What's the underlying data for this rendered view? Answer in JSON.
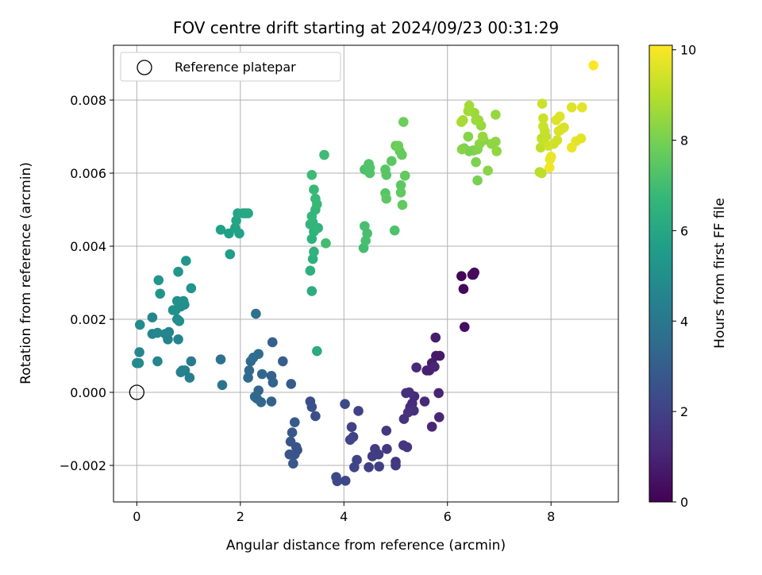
{
  "chart_data": {
    "type": "scatter",
    "title": "FOV centre drift starting at 2024/09/23 00:31:29",
    "xlabel": "Angular distance from reference (arcmin)",
    "ylabel": "Rotation from reference (arcmin)",
    "xlim": [
      -0.45,
      9.3
    ],
    "ylim": [
      -0.003,
      0.0095
    ],
    "xticks": [
      0,
      2,
      4,
      6,
      8
    ],
    "xtick_labels": [
      "0",
      "2",
      "4",
      "6",
      "8"
    ],
    "yticks": [
      -0.002,
      0.0,
      0.002,
      0.004,
      0.006,
      0.008
    ],
    "ytick_labels": [
      "−0.002",
      "0.000",
      "0.002",
      "0.004",
      "0.006",
      "0.008"
    ],
    "grid": true,
    "legend": {
      "placement": "top-left",
      "entries": [
        "Reference platepar"
      ]
    },
    "colorbar": {
      "label": "Hours from first FF file",
      "range": [
        0,
        10.1
      ],
      "ticks": [
        0,
        2,
        4,
        6,
        8,
        10
      ],
      "tick_labels": [
        "0",
        "2",
        "4",
        "6",
        "8",
        "10"
      ],
      "colormap": [
        "#440154",
        "#482878",
        "#3e4989",
        "#31688e",
        "#26828e",
        "#1f9e89",
        "#35b779",
        "#6ece58",
        "#b5de2b",
        "#fde725"
      ]
    },
    "reference": {
      "x": 0.0,
      "y": 0.0,
      "marker": "open-circle",
      "color": "#000000"
    },
    "points": [
      [
        6.27,
        0.00318,
        0.1
      ],
      [
        6.31,
        0.00283,
        0.2
      ],
      [
        6.48,
        0.00322,
        0.2
      ],
      [
        6.52,
        0.00328,
        0.3
      ],
      [
        6.5,
        0.00322,
        0.3
      ],
      [
        6.33,
        0.00179,
        0.4
      ],
      [
        5.78,
        0.001,
        0.7
      ],
      [
        5.85,
        0.001,
        0.7
      ],
      [
        5.77,
        0.0015,
        0.8
      ],
      [
        5.7,
        0.0008,
        0.8
      ],
      [
        5.65,
        0.0006,
        0.9
      ],
      [
        5.6,
        0.0006,
        0.9
      ],
      [
        5.75,
        0.0007,
        1.0
      ],
      [
        5.83,
        -2e-05,
        1.0
      ],
      [
        5.84,
        -0.00068,
        1.1
      ],
      [
        5.7,
        -0.00094,
        1.1
      ],
      [
        5.56,
        -0.00025,
        1.2
      ],
      [
        5.4,
        0.00068,
        1.2
      ],
      [
        5.36,
        -0.00011,
        1.3
      ],
      [
        5.32,
        -0.0003,
        1.3
      ],
      [
        5.28,
        -0.0004,
        1.3
      ],
      [
        5.35,
        -0.0005,
        1.4
      ],
      [
        5.26,
        0.0,
        1.4
      ],
      [
        5.2,
        -2e-05,
        1.4
      ],
      [
        5.24,
        -0.00055,
        1.5
      ],
      [
        5.16,
        -0.00073,
        1.5
      ],
      [
        5.22,
        -0.0015,
        1.6
      ],
      [
        5.15,
        -0.00145,
        1.6
      ],
      [
        5.0,
        -0.0019,
        1.6
      ],
      [
        5.0,
        -0.002,
        1.7
      ],
      [
        4.82,
        -0.00105,
        1.7
      ],
      [
        4.83,
        -0.00155,
        1.7
      ],
      [
        4.67,
        -0.0017,
        1.8
      ],
      [
        4.6,
        -0.00155,
        1.8
      ],
      [
        4.55,
        -0.00175,
        1.8
      ],
      [
        4.48,
        -0.00205,
        1.9
      ],
      [
        4.68,
        -0.00203,
        1.9
      ],
      [
        4.28,
        -0.00051,
        2.0
      ],
      [
        4.15,
        -0.00095,
        2.0
      ],
      [
        4.18,
        -0.00122,
        2.0
      ],
      [
        4.12,
        -0.0013,
        2.1
      ],
      [
        4.25,
        -0.00185,
        2.1
      ],
      [
        4.2,
        -0.00205,
        2.1
      ],
      [
        4.03,
        -0.00242,
        2.2
      ],
      [
        3.87,
        -0.00243,
        2.2
      ],
      [
        3.85,
        -0.00232,
        2.2
      ],
      [
        4.02,
        -0.00032,
        2.3
      ],
      [
        3.45,
        -0.00065,
        2.4
      ],
      [
        3.35,
        -0.00025,
        2.4
      ],
      [
        3.38,
        -0.0004,
        2.5
      ],
      [
        3.1,
        -0.00158,
        2.5
      ],
      [
        3.08,
        -0.0015,
        2.6
      ],
      [
        3.05,
        -0.0017,
        2.6
      ],
      [
        2.95,
        -0.0017,
        2.7
      ],
      [
        2.97,
        -0.00135,
        2.7
      ],
      [
        3.0,
        -0.0011,
        2.8
      ],
      [
        3.02,
        -0.00195,
        2.8
      ],
      [
        3.05,
        -0.00082,
        2.9
      ],
      [
        2.98,
        0.00023,
        2.9
      ],
      [
        2.82,
        0.00085,
        3.0
      ],
      [
        2.62,
        0.00137,
        3.1
      ],
      [
        2.6,
        0.00045,
        3.1
      ],
      [
        2.63,
        0.00027,
        3.2
      ],
      [
        2.6,
        -0.00025,
        3.2
      ],
      [
        2.42,
        0.0005,
        3.3
      ],
      [
        2.35,
        5e-05,
        3.3
      ],
      [
        2.32,
        -0.00017,
        3.3
      ],
      [
        2.4,
        -0.00027,
        3.4
      ],
      [
        2.28,
        -0.00012,
        3.4
      ],
      [
        2.15,
        0.0004,
        3.5
      ],
      [
        2.17,
        0.0006,
        3.5
      ],
      [
        2.2,
        0.00085,
        3.5
      ],
      [
        2.25,
        0.00095,
        3.6
      ],
      [
        2.35,
        0.00105,
        3.6
      ],
      [
        2.3,
        0.00215,
        3.7
      ],
      [
        1.62,
        0.0009,
        3.8
      ],
      [
        1.65,
        0.0002,
        3.9
      ],
      [
        1.05,
        0.00085,
        4.2
      ],
      [
        1.02,
        0.0004,
        4.3
      ],
      [
        0.93,
        0.0006,
        4.3
      ],
      [
        0.88,
        0.0006,
        4.4
      ],
      [
        0.85,
        0.00055,
        4.4
      ],
      [
        0.8,
        0.00145,
        4.5
      ],
      [
        0.6,
        0.00145,
        4.5
      ],
      [
        0.62,
        0.00165,
        4.5
      ],
      [
        0.55,
        0.0016,
        4.6
      ],
      [
        0.4,
        0.00085,
        4.6
      ],
      [
        0.3,
        0.0016,
        4.6
      ],
      [
        0.4,
        0.00163,
        4.7
      ],
      [
        0.3,
        0.00205,
        4.7
      ],
      [
        0.05,
        0.0011,
        4.7
      ],
      [
        0.04,
        0.0008,
        4.8
      ],
      [
        0.0,
        0.0008,
        4.8
      ],
      [
        0.06,
        0.00185,
        4.9
      ],
      [
        0.78,
        0.002,
        4.9
      ],
      [
        0.82,
        0.00195,
        5.0
      ],
      [
        0.75,
        0.00225,
        5.0
      ],
      [
        0.85,
        0.00235,
        5.0
      ],
      [
        0.92,
        0.0024,
        5.0
      ],
      [
        0.78,
        0.0025,
        5.1
      ],
      [
        0.9,
        0.0025,
        5.1
      ],
      [
        0.7,
        0.00225,
        5.1
      ],
      [
        0.45,
        0.0027,
        5.2
      ],
      [
        1.05,
        0.00285,
        5.2
      ],
      [
        0.8,
        0.0033,
        5.3
      ],
      [
        0.95,
        0.0036,
        5.3
      ],
      [
        0.42,
        0.00307,
        5.3
      ],
      [
        1.8,
        0.00378,
        5.6
      ],
      [
        1.62,
        0.00445,
        5.7
      ],
      [
        1.78,
        0.00435,
        5.7
      ],
      [
        1.9,
        0.0045,
        5.8
      ],
      [
        1.98,
        0.00435,
        5.8
      ],
      [
        1.92,
        0.0047,
        5.9
      ],
      [
        1.95,
        0.0049,
        5.9
      ],
      [
        2.05,
        0.0049,
        6.0
      ],
      [
        2.1,
        0.0049,
        6.0
      ],
      [
        2.15,
        0.0049,
        6.0
      ],
      [
        3.48,
        0.00113,
        6.2
      ],
      [
        3.38,
        0.00277,
        6.3
      ],
      [
        3.35,
        0.00333,
        6.4
      ],
      [
        3.4,
        0.00365,
        6.4
      ],
      [
        3.42,
        0.00385,
        6.5
      ],
      [
        3.38,
        0.0042,
        6.5
      ],
      [
        3.42,
        0.0044,
        6.5
      ],
      [
        3.5,
        0.0045,
        6.6
      ],
      [
        3.4,
        0.00465,
        6.6
      ],
      [
        3.35,
        0.0046,
        6.6
      ],
      [
        3.38,
        0.00482,
        6.7
      ],
      [
        3.45,
        0.005,
        6.7
      ],
      [
        3.48,
        0.00515,
        6.8
      ],
      [
        3.45,
        0.0053,
        6.8
      ],
      [
        3.42,
        0.00555,
        6.8
      ],
      [
        3.38,
        0.00595,
        6.9
      ],
      [
        3.62,
        0.0065,
        6.9
      ],
      [
        3.65,
        0.00408,
        7.0
      ],
      [
        4.38,
        0.00395,
        7.0
      ],
      [
        4.42,
        0.00415,
        7.1
      ],
      [
        4.45,
        0.00435,
        7.1
      ],
      [
        4.4,
        0.00455,
        7.1
      ],
      [
        4.98,
        0.00443,
        7.2
      ],
      [
        4.4,
        0.0061,
        7.2
      ],
      [
        4.5,
        0.00615,
        7.3
      ],
      [
        4.48,
        0.00625,
        7.3
      ],
      [
        4.5,
        0.006,
        7.3
      ],
      [
        4.8,
        0.0061,
        7.4
      ],
      [
        4.82,
        0.00595,
        7.4
      ],
      [
        4.8,
        0.00545,
        7.4
      ],
      [
        4.82,
        0.0053,
        7.5
      ],
      [
        4.92,
        0.00633,
        7.5
      ],
      [
        5.1,
        0.00567,
        7.5
      ],
      [
        5.1,
        0.00547,
        7.6
      ],
      [
        5.13,
        0.00513,
        7.6
      ],
      [
        5.18,
        0.00593,
        7.6
      ],
      [
        5.08,
        0.0066,
        7.7
      ],
      [
        5.12,
        0.0065,
        7.7
      ],
      [
        5.0,
        0.00675,
        7.7
      ],
      [
        5.05,
        0.00675,
        7.8
      ],
      [
        5.15,
        0.0074,
        7.8
      ],
      [
        6.58,
        0.0058,
        8.0
      ],
      [
        6.5,
        0.00662,
        8.0
      ],
      [
        6.55,
        0.0063,
        8.1
      ],
      [
        6.42,
        0.0066,
        8.1
      ],
      [
        6.32,
        0.00668,
        8.1
      ],
      [
        6.28,
        0.00665,
        8.2
      ],
      [
        6.4,
        0.007,
        8.2
      ],
      [
        6.58,
        0.00665,
        8.2
      ],
      [
        6.62,
        0.0068,
        8.3
      ],
      [
        6.7,
        0.0069,
        8.3
      ],
      [
        6.78,
        0.00607,
        8.3
      ],
      [
        6.85,
        0.0068,
        8.4
      ],
      [
        6.93,
        0.00686,
        8.4
      ],
      [
        6.95,
        0.0066,
        8.4
      ],
      [
        6.93,
        0.0076,
        8.5
      ],
      [
        6.68,
        0.007,
        8.5
      ],
      [
        6.65,
        0.0073,
        8.5
      ],
      [
        6.55,
        0.00745,
        8.6
      ],
      [
        6.6,
        0.00745,
        8.6
      ],
      [
        6.52,
        0.00765,
        8.6
      ],
      [
        6.4,
        0.0077,
        8.7
      ],
      [
        6.42,
        0.00785,
        8.7
      ],
      [
        6.3,
        0.00745,
        8.7
      ],
      [
        6.27,
        0.0074,
        8.8
      ],
      [
        7.78,
        0.00603,
        9.0
      ],
      [
        7.82,
        0.006,
        9.1
      ],
      [
        7.8,
        0.0067,
        9.1
      ],
      [
        7.82,
        0.00695,
        9.1
      ],
      [
        7.85,
        0.0069,
        9.2
      ],
      [
        7.9,
        0.007,
        9.2
      ],
      [
        7.88,
        0.00715,
        9.2
      ],
      [
        7.85,
        0.00728,
        9.3
      ],
      [
        7.85,
        0.0075,
        9.3
      ],
      [
        7.83,
        0.0079,
        9.3
      ],
      [
        7.95,
        0.00675,
        9.4
      ],
      [
        8.05,
        0.0068,
        9.4
      ],
      [
        8.12,
        0.0069,
        9.4
      ],
      [
        8.15,
        0.00715,
        9.5
      ],
      [
        8.2,
        0.0072,
        9.5
      ],
      [
        8.25,
        0.00725,
        9.5
      ],
      [
        8.1,
        0.00745,
        9.6
      ],
      [
        8.17,
        0.00755,
        9.6
      ],
      [
        8.4,
        0.0078,
        9.6
      ],
      [
        8.6,
        0.0078,
        9.7
      ],
      [
        8.58,
        0.00695,
        9.7
      ],
      [
        8.48,
        0.00687,
        9.7
      ],
      [
        8.4,
        0.0067,
        9.8
      ],
      [
        7.98,
        0.00638,
        9.8
      ],
      [
        8.0,
        0.00645,
        9.8
      ],
      [
        7.97,
        0.00615,
        9.9
      ],
      [
        8.82,
        0.00895,
        10.1
      ]
    ]
  }
}
